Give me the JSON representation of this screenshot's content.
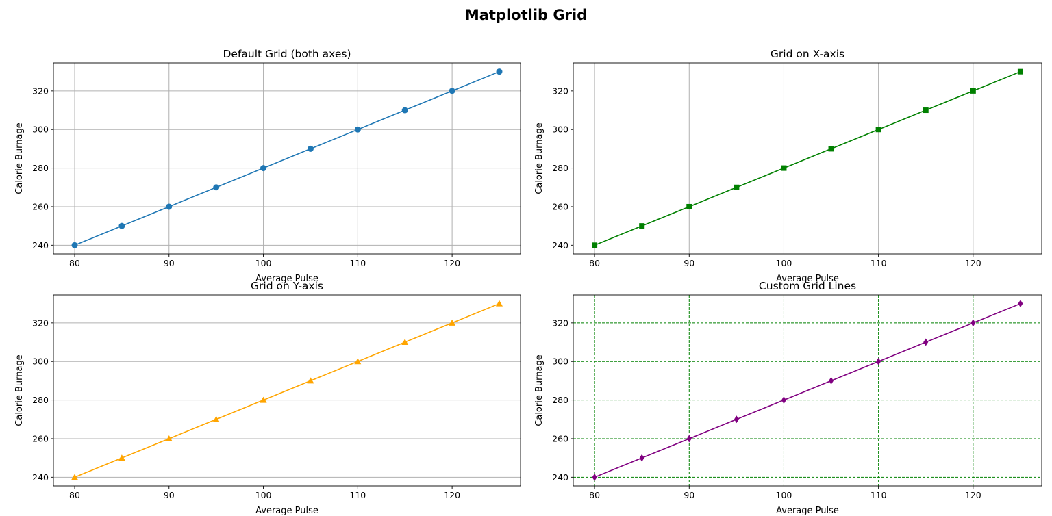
{
  "figure": {
    "title": "Matplotlib Grid"
  },
  "chart_data": [
    {
      "type": "line",
      "title": "Default Grid (both axes)",
      "xlabel": "Average Pulse",
      "ylabel": "Calorie Burnage",
      "x": [
        80,
        85,
        90,
        95,
        100,
        105,
        110,
        115,
        120,
        125
      ],
      "series": [
        {
          "values": [
            240,
            250,
            260,
            270,
            280,
            290,
            300,
            310,
            320,
            330
          ],
          "color": "#1f77b4",
          "marker": "circle"
        }
      ],
      "xlim": [
        77.75,
        127.25
      ],
      "ylim": [
        235.5,
        334.5
      ],
      "xticks": [
        80,
        90,
        100,
        110,
        120
      ],
      "yticks": [
        240,
        260,
        280,
        300,
        320
      ],
      "grid": "both",
      "grid_style": {
        "color": "#b0b0b0",
        "dash": "none"
      }
    },
    {
      "type": "line",
      "title": "Grid on X-axis",
      "xlabel": "Average Pulse",
      "ylabel": "Calorie Burnage",
      "x": [
        80,
        85,
        90,
        95,
        100,
        105,
        110,
        115,
        120,
        125
      ],
      "series": [
        {
          "values": [
            240,
            250,
            260,
            270,
            280,
            290,
            300,
            310,
            320,
            330
          ],
          "color": "#008000",
          "marker": "square"
        }
      ],
      "xlim": [
        77.75,
        127.25
      ],
      "ylim": [
        235.5,
        334.5
      ],
      "xticks": [
        80,
        90,
        100,
        110,
        120
      ],
      "yticks": [
        240,
        260,
        280,
        300,
        320
      ],
      "grid": "x",
      "grid_style": {
        "color": "#b0b0b0",
        "dash": "none"
      }
    },
    {
      "type": "line",
      "title": "Grid on Y-axis",
      "xlabel": "Average Pulse",
      "ylabel": "Calorie Burnage",
      "x": [
        80,
        85,
        90,
        95,
        100,
        105,
        110,
        115,
        120,
        125
      ],
      "series": [
        {
          "values": [
            240,
            250,
            260,
            270,
            280,
            290,
            300,
            310,
            320,
            330
          ],
          "color": "#ffa500",
          "marker": "triangle"
        }
      ],
      "xlim": [
        77.75,
        127.25
      ],
      "ylim": [
        235.5,
        334.5
      ],
      "xticks": [
        80,
        90,
        100,
        110,
        120
      ],
      "yticks": [
        240,
        260,
        280,
        300,
        320
      ],
      "grid": "y",
      "grid_style": {
        "color": "#b0b0b0",
        "dash": "none"
      }
    },
    {
      "type": "line",
      "title": "Custom Grid Lines",
      "xlabel": "Average Pulse",
      "ylabel": "Calorie Burnage",
      "x": [
        80,
        85,
        90,
        95,
        100,
        105,
        110,
        115,
        120,
        125
      ],
      "series": [
        {
          "values": [
            240,
            250,
            260,
            270,
            280,
            290,
            300,
            310,
            320,
            330
          ],
          "color": "#800080",
          "marker": "diamond"
        }
      ],
      "xlim": [
        77.75,
        127.25
      ],
      "ylim": [
        235.5,
        334.5
      ],
      "xticks": [
        80,
        90,
        100,
        110,
        120
      ],
      "yticks": [
        240,
        260,
        280,
        300,
        320
      ],
      "grid": "both",
      "grid_style": {
        "color": "#008000",
        "dash": "dashed"
      }
    }
  ]
}
